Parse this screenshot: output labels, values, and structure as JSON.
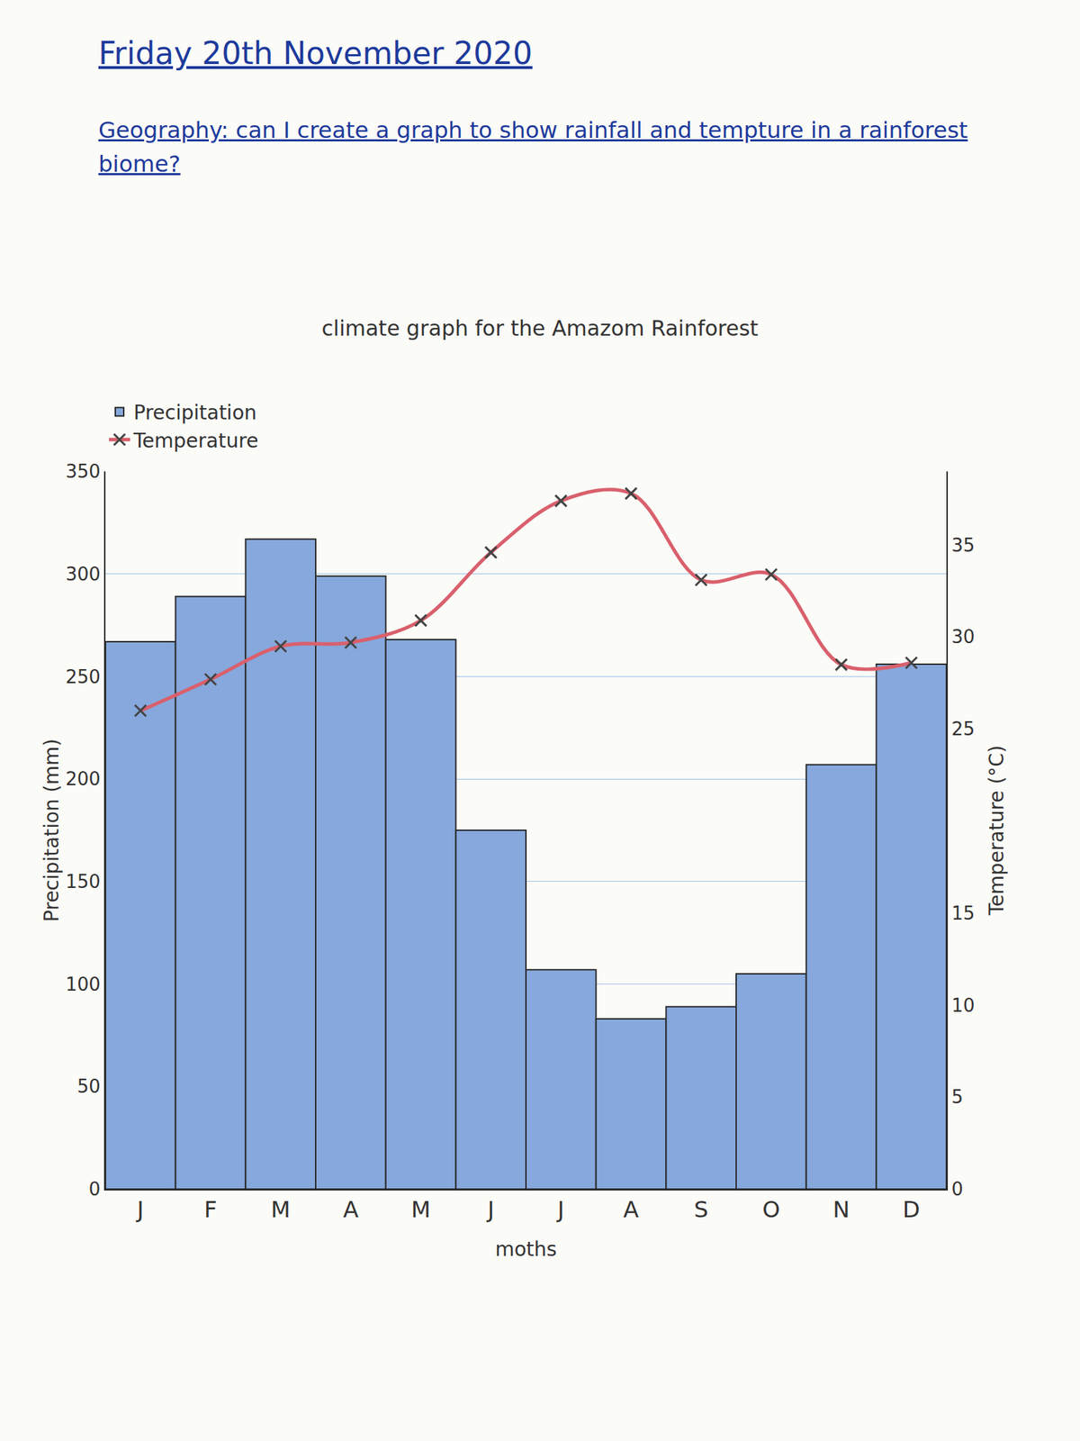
{
  "header": {
    "date": "Friday 20th November 2020",
    "objective": "Geography: can I create a graph to show rainfall and tempture in a rainforest biome?"
  },
  "chart_data": {
    "type": "bar",
    "title": "climate graph for the Amazom Rainforest",
    "x_label": "moths",
    "y_label": "Precipitation (mm)",
    "y2_label": "Temperature (°C)",
    "categories": [
      "J",
      "F",
      "M",
      "A",
      "M",
      "J",
      "J",
      "A",
      "S",
      "O",
      "N",
      "D"
    ],
    "series": [
      {
        "name": "Precipitation",
        "type": "bar",
        "color": "#86a8dc",
        "values": [
          267,
          289,
          317,
          299,
          268,
          175,
          107,
          83,
          89,
          105,
          207,
          256
        ]
      },
      {
        "name": "Temperature",
        "type": "line",
        "axis": "y2",
        "color": "#d9606c",
        "marker": "x",
        "line_style": "solid",
        "values": [
          26.0,
          27.7,
          29.5,
          29.7,
          30.9,
          34.6,
          37.4,
          37.8,
          33.1,
          33.4,
          28.5,
          28.6
        ]
      }
    ],
    "ylim": [
      0,
      350
    ],
    "yticks": [
      0,
      50,
      100,
      150,
      200,
      250,
      300,
      350
    ],
    "y2lim": [
      0,
      39
    ],
    "y2ticks": [
      0,
      5,
      10,
      15,
      25,
      30,
      35
    ],
    "grid": true,
    "legend": "top-left"
  }
}
